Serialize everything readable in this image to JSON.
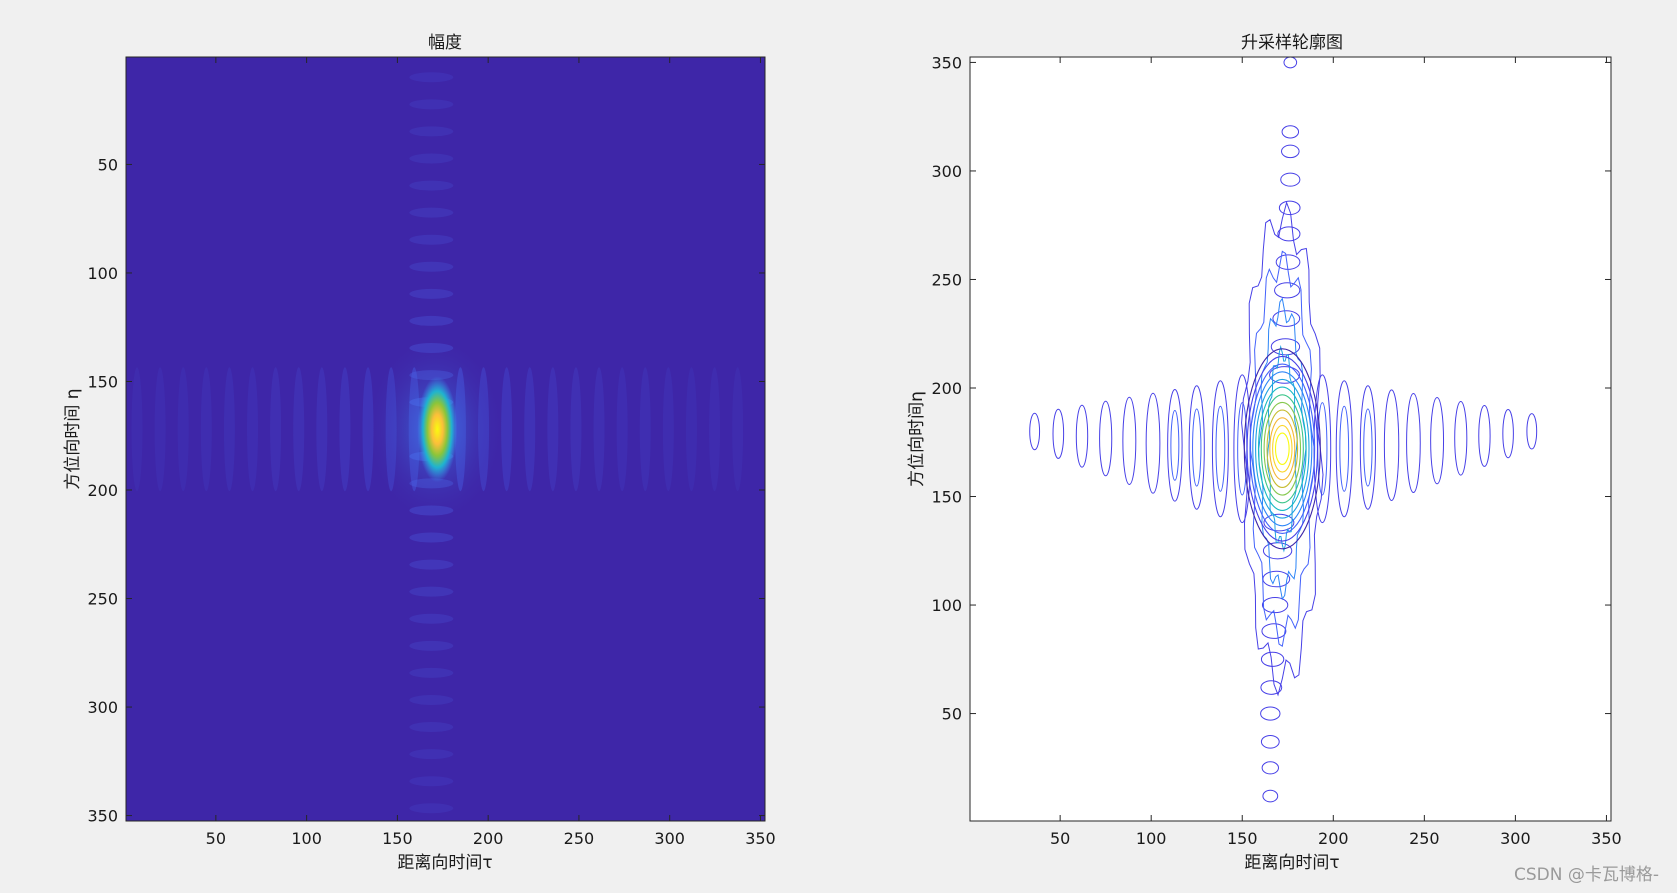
{
  "colors": {
    "figure_bg": "#f0f0f0",
    "axes_bg_contour": "#ffffff",
    "parula_low": "#3e26a8",
    "parula_mid": "#1fb3d0",
    "parula_high": "#f9fb0e"
  },
  "watermark": "CSDN @卡瓦博格-",
  "chart_data": [
    {
      "type": "heatmap",
      "title": "幅度",
      "xlabel": "距离向时间τ",
      "ylabel": "方位向时间 η",
      "xlim": [
        0.5,
        352.5
      ],
      "ylim": [
        0.5,
        352.5
      ],
      "y_direction": "reverse",
      "xticks": [
        50,
        100,
        150,
        200,
        250,
        300,
        350
      ],
      "yticks": [
        50,
        100,
        150,
        200,
        250,
        300,
        350
      ],
      "colormap": "parula",
      "peak": {
        "x": 172,
        "y": 172,
        "value": 1.0
      },
      "grid": false,
      "legend": "none"
    },
    {
      "type": "contour",
      "title": "升采样轮廓图",
      "xlabel": "距离向时间τ",
      "ylabel": "方位向时间η",
      "xlim": [
        0.5,
        352.5
      ],
      "ylim": [
        0.5,
        352.5
      ],
      "y_direction": "normal",
      "xticks": [
        50,
        100,
        150,
        200,
        250,
        300,
        350
      ],
      "yticks": [
        50,
        100,
        150,
        200,
        250,
        300,
        350
      ],
      "colormap": "parula",
      "peak": {
        "x": 172,
        "y": 172
      },
      "range_sidelobe_x": [
        36,
        49,
        62,
        75,
        88,
        101,
        113,
        125,
        138,
        150,
        194,
        206,
        219,
        232,
        244,
        257,
        270,
        283,
        296,
        309
      ],
      "azimuth_sidelobe_y": [
        12,
        25,
        37,
        50,
        62,
        75,
        88,
        100,
        112,
        125,
        138,
        206,
        219,
        232,
        245,
        258,
        271,
        283,
        296,
        309,
        318,
        350
      ],
      "grid": false,
      "legend": "none"
    }
  ]
}
